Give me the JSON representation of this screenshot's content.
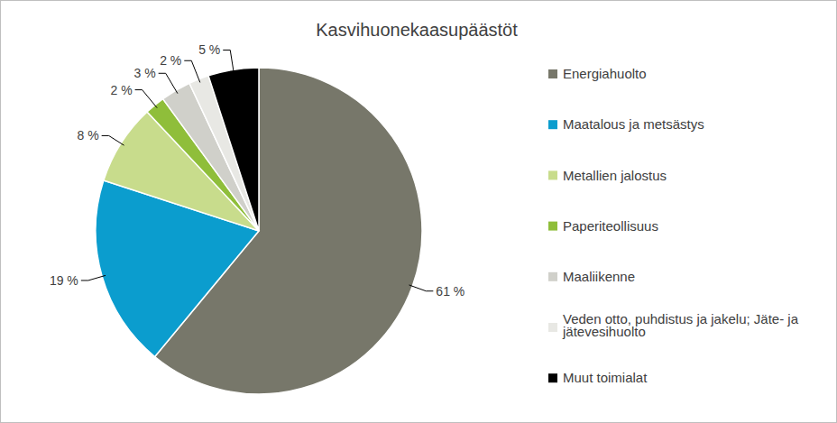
{
  "chart_data": {
    "type": "pie",
    "title": "Kasvihuonekaasupäästöt",
    "categories": [
      "Energiahuolto",
      "Maatalous ja metsästys",
      "Metallien jalostus",
      "Paperiteollisuus",
      "Maaliikenne",
      "Veden otto, puhdistus ja jakelu; Jäte- ja jätevesihuolto",
      "Muut toimialat"
    ],
    "values": [
      61,
      19,
      8,
      2,
      3,
      2,
      5
    ],
    "value_labels": [
      "61 %",
      "19 %",
      "8 %",
      "2 %",
      "3 %",
      "2 %",
      "5 %"
    ],
    "colors": [
      "#77776a",
      "#0b9dce",
      "#c8dc8c",
      "#8fbe3a",
      "#d0d0ca",
      "#e8e8e4",
      "#000000"
    ],
    "legend": "right",
    "data_labels": true
  }
}
